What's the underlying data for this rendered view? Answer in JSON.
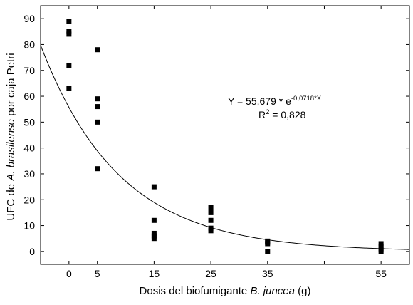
{
  "chart_data": {
    "type": "scatter",
    "xlabel": {
      "pre": "Dosis del biofumigante ",
      "em": "B. juncea",
      "post": " (g)"
    },
    "ylabel": {
      "pre": "UFC de ",
      "em": "A. brasilense",
      "post": " por caja Petri"
    },
    "xlim": [
      -5,
      60
    ],
    "ylim": [
      -5,
      95
    ],
    "xticks": [
      0,
      5,
      15,
      25,
      35,
      55
    ],
    "xticks_unlabeled": [
      45
    ],
    "yticks": [
      0,
      10,
      20,
      30,
      40,
      50,
      60,
      70,
      80,
      90
    ],
    "points": [
      {
        "x": 0,
        "y": 89
      },
      {
        "x": 0,
        "y": 85
      },
      {
        "x": 0,
        "y": 84
      },
      {
        "x": 0,
        "y": 72
      },
      {
        "x": 0,
        "y": 63
      },
      {
        "x": 5,
        "y": 78
      },
      {
        "x": 5,
        "y": 59
      },
      {
        "x": 5,
        "y": 56
      },
      {
        "x": 5,
        "y": 50
      },
      {
        "x": 5,
        "y": 32
      },
      {
        "x": 15,
        "y": 25
      },
      {
        "x": 15,
        "y": 12
      },
      {
        "x": 15,
        "y": 7
      },
      {
        "x": 15,
        "y": 6
      },
      {
        "x": 15,
        "y": 5
      },
      {
        "x": 25,
        "y": 17
      },
      {
        "x": 25,
        "y": 15
      },
      {
        "x": 25,
        "y": 12
      },
      {
        "x": 25,
        "y": 9
      },
      {
        "x": 25,
        "y": 8
      },
      {
        "x": 35,
        "y": 4
      },
      {
        "x": 35,
        "y": 3.5
      },
      {
        "x": 35,
        "y": 3
      },
      {
        "x": 35,
        "y": 0
      },
      {
        "x": 55,
        "y": 3
      },
      {
        "x": 55,
        "y": 2
      },
      {
        "x": 55,
        "y": 1
      },
      {
        "x": 55,
        "y": 0
      }
    ],
    "fit": {
      "type": "exponential",
      "a": 55.679,
      "b": -0.0718
    },
    "annotation": {
      "equation_pre": "Y = 55,679 * e",
      "equation_exp": "-0,0718*X",
      "r2_pre": "R",
      "r2_sup": "2",
      "r2_post": " = 0,828"
    },
    "grid": false,
    "legend": "none"
  }
}
